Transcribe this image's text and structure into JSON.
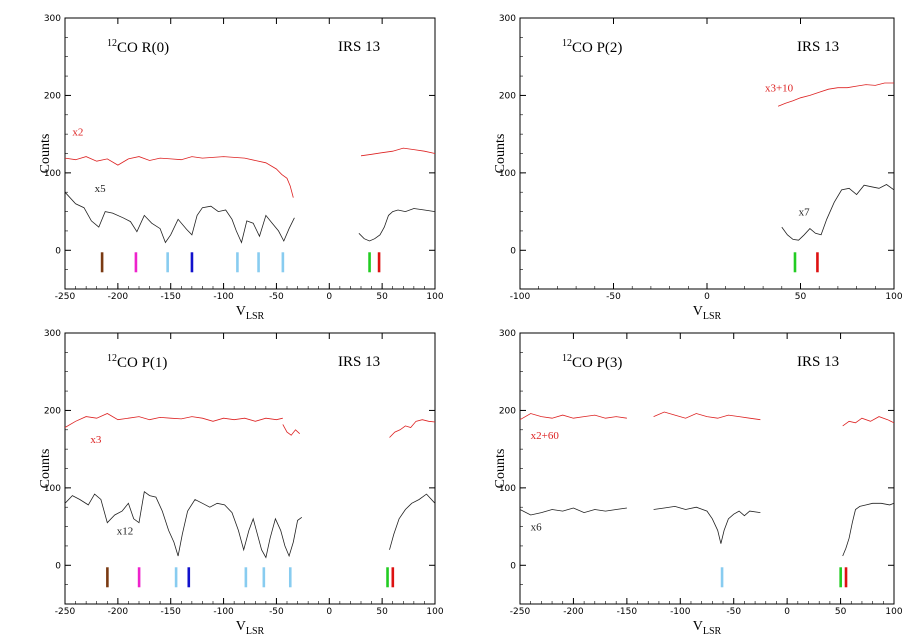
{
  "colors": {
    "red_trace": "#dd2222",
    "black_trace": "#222222",
    "brown": "#7a3a12",
    "magenta": "#ee22cc",
    "light_blue": "#88ccf0",
    "blue": "#1111cc",
    "green": "#22cc22",
    "red": "#dd1111"
  },
  "chart_data": [
    {
      "type": "line",
      "title_iso": "12",
      "title_main": "CO R(0)",
      "source": "IRS 13",
      "xlabel": "V",
      "xlabel_sub": "LSR",
      "ylabel": "Counts",
      "xlim": [
        -250,
        100
      ],
      "ylim": [
        -50,
        300
      ],
      "xticks": [
        -250,
        -200,
        -150,
        -100,
        -50,
        0,
        50,
        100
      ],
      "yticks": [
        0,
        100,
        200,
        300
      ],
      "series": [
        {
          "name": "x2",
          "color_key": "red_trace",
          "segments": [
            {
              "x": [
                -250,
                -240,
                -230,
                -220,
                -210,
                -200,
                -190,
                -180,
                -170,
                -160,
                -150,
                -140,
                -130,
                -120,
                -110,
                -100,
                -90,
                -80,
                -70,
                -60,
                -50,
                -45,
                -40,
                -37,
                -34
              ],
              "y": [
                119,
                117,
                121,
                115,
                118,
                110,
                118,
                121,
                116,
                119,
                118,
                117,
                121,
                119,
                120,
                121,
                120,
                119,
                116,
                113,
                105,
                98,
                93,
                83,
                68
              ]
            },
            {
              "x": [
                30,
                40,
                50,
                60,
                70,
                80,
                90,
                100
              ],
              "y": [
                122,
                124,
                126,
                128,
                132,
                130,
                128,
                125
              ]
            }
          ]
        },
        {
          "name": "x5",
          "color_key": "black_trace",
          "segments": [
            {
              "x": [
                -250,
                -240,
                -232,
                -225,
                -218,
                -212,
                -205,
                -195,
                -188,
                -182,
                -175,
                -168,
                -160,
                -155,
                -150,
                -143,
                -135,
                -130,
                -125,
                -120,
                -112,
                -105,
                -98,
                -92,
                -88,
                -83,
                -78,
                -72,
                -66,
                -60,
                -54,
                -48,
                -43,
                -38,
                -33
              ],
              "y": [
                75,
                60,
                55,
                38,
                30,
                50,
                48,
                42,
                37,
                24,
                45,
                35,
                28,
                10,
                20,
                40,
                27,
                20,
                45,
                55,
                57,
                50,
                52,
                40,
                25,
                10,
                38,
                35,
                18,
                45,
                35,
                25,
                12,
                28,
                42
              ]
            },
            {
              "x": [
                28,
                33,
                38,
                43,
                48,
                52,
                56,
                60,
                65,
                72,
                80,
                90,
                100
              ],
              "y": [
                22,
                15,
                12,
                15,
                20,
                30,
                45,
                50,
                52,
                50,
                54,
                52,
                50
              ]
            }
          ]
        }
      ],
      "markers": [
        {
          "x": -215,
          "color_key": "brown"
        },
        {
          "x": -183,
          "color_key": "magenta"
        },
        {
          "x": -153,
          "color_key": "light_blue"
        },
        {
          "x": -130,
          "color_key": "blue"
        },
        {
          "x": -87,
          "color_key": "light_blue"
        },
        {
          "x": -67,
          "color_key": "light_blue"
        },
        {
          "x": -44,
          "color_key": "light_blue"
        },
        {
          "x": 38,
          "color_key": "green"
        },
        {
          "x": 47,
          "color_key": "red"
        }
      ],
      "annotations": [
        {
          "text": "x2",
          "x": -243,
          "y": 148,
          "color_key": "red_trace"
        },
        {
          "text": "x5",
          "x": -222,
          "y": 75,
          "color_key": "black_trace"
        }
      ]
    },
    {
      "type": "line",
      "title_iso": "12",
      "title_main": "CO P(2)",
      "source": "IRS 13",
      "xlabel": "V",
      "xlabel_sub": "LSR",
      "ylabel": "Counts",
      "xlim": [
        -100,
        100
      ],
      "ylim": [
        -50,
        300
      ],
      "xticks": [
        -100,
        -50,
        0,
        50,
        100
      ],
      "yticks": [
        0,
        100,
        200,
        300
      ],
      "series": [
        {
          "name": "x3+10",
          "color_key": "red_trace",
          "segments": [
            {
              "x": [
                38,
                42,
                46,
                50,
                55,
                60,
                65,
                70,
                75,
                80,
                85,
                90,
                95,
                100
              ],
              "y": [
                186,
                190,
                193,
                197,
                200,
                204,
                208,
                210,
                210,
                212,
                214,
                213,
                216,
                216
              ]
            }
          ]
        },
        {
          "name": "x7",
          "color_key": "black_trace",
          "segments": [
            {
              "x": [
                40,
                43,
                46,
                49,
                52,
                55,
                58,
                61,
                64,
                68,
                72,
                76,
                80,
                84,
                88,
                92,
                96,
                100
              ],
              "y": [
                30,
                20,
                14,
                13,
                20,
                28,
                22,
                20,
                40,
                62,
                78,
                80,
                72,
                84,
                82,
                80,
                85,
                78
              ]
            }
          ]
        }
      ],
      "markers": [
        {
          "x": 47,
          "color_key": "green"
        },
        {
          "x": 59,
          "color_key": "red"
        }
      ],
      "annotations": [
        {
          "text": "x3+10",
          "x": 31,
          "y": 205,
          "color_key": "red_trace"
        },
        {
          "text": "x7",
          "x": 49,
          "y": 45,
          "color_key": "black_trace"
        }
      ]
    },
    {
      "type": "line",
      "title_iso": "12",
      "title_main": "CO P(1)",
      "source": "IRS 13",
      "xlabel": "V",
      "xlabel_sub": "LSR",
      "ylabel": "Counts",
      "xlim": [
        -250,
        100
      ],
      "ylim": [
        -50,
        300
      ],
      "xticks": [
        -250,
        -200,
        -150,
        -100,
        -50,
        0,
        50,
        100
      ],
      "yticks": [
        0,
        100,
        200,
        300
      ],
      "series": [
        {
          "name": "x3",
          "color_key": "red_trace",
          "segments": [
            {
              "x": [
                -250,
                -240,
                -230,
                -220,
                -210,
                -200,
                -190,
                -180,
                -170,
                -160,
                -150,
                -140,
                -130,
                -120,
                -110,
                -100,
                -90,
                -80,
                -70,
                -60,
                -50,
                -44
              ],
              "y": [
                178,
                186,
                192,
                190,
                196,
                188,
                190,
                192,
                188,
                191,
                190,
                189,
                192,
                190,
                186,
                190,
                188,
                190,
                186,
                190,
                188,
                190
              ]
            },
            {
              "x": [
                -44,
                -40,
                -36,
                -32,
                -28
              ],
              "y": [
                182,
                172,
                168,
                175,
                170
              ]
            },
            {
              "x": [
                57,
                62,
                67,
                72,
                77,
                82,
                88,
                94,
                100
              ],
              "y": [
                165,
                172,
                175,
                180,
                178,
                186,
                188,
                186,
                185
              ]
            }
          ]
        },
        {
          "name": "x12",
          "color_key": "black_trace",
          "segments": [
            {
              "x": [
                -250,
                -243,
                -236,
                -228,
                -222,
                -216,
                -210,
                -203,
                -196,
                -190,
                -185,
                -180,
                -175,
                -170,
                -164,
                -158,
                -152,
                -147,
                -143,
                -139,
                -134,
                -127,
                -120,
                -113,
                -106,
                -99,
                -92,
                -86,
                -81,
                -76,
                -72,
                -68,
                -64,
                -60,
                -56,
                -51,
                -46,
                -42,
                -38,
                -34,
                -30,
                -26
              ],
              "y": [
                80,
                90,
                85,
                78,
                92,
                85,
                55,
                65,
                70,
                80,
                60,
                55,
                95,
                90,
                88,
                70,
                45,
                30,
                12,
                40,
                70,
                85,
                80,
                75,
                80,
                78,
                68,
                45,
                20,
                45,
                60,
                40,
                20,
                10,
                35,
                60,
                45,
                25,
                12,
                30,
                58,
                62
              ]
            },
            {
              "x": [
                57,
                61,
                66,
                72,
                78,
                85,
                92,
                100
              ],
              "y": [
                20,
                40,
                60,
                72,
                80,
                85,
                92,
                80
              ]
            }
          ]
        }
      ],
      "markers": [
        {
          "x": -210,
          "color_key": "brown"
        },
        {
          "x": -180,
          "color_key": "magenta"
        },
        {
          "x": -145,
          "color_key": "light_blue"
        },
        {
          "x": -133,
          "color_key": "blue"
        },
        {
          "x": -79,
          "color_key": "light_blue"
        },
        {
          "x": -62,
          "color_key": "light_blue"
        },
        {
          "x": -37,
          "color_key": "light_blue"
        },
        {
          "x": 55,
          "color_key": "green"
        },
        {
          "x": 60,
          "color_key": "red"
        }
      ],
      "annotations": [
        {
          "text": "x3",
          "x": -226,
          "y": 158,
          "color_key": "red_trace"
        },
        {
          "text": "x12",
          "x": -201,
          "y": 40,
          "color_key": "black_trace"
        }
      ]
    },
    {
      "type": "line",
      "title_iso": "12",
      "title_main": "CO P(3)",
      "source": "IRS 13",
      "xlabel": "V",
      "xlabel_sub": "LSR",
      "ylabel": "Counts",
      "xlim": [
        -250,
        100
      ],
      "ylim": [
        -50,
        300
      ],
      "xticks": [
        -250,
        -200,
        -150,
        -100,
        -50,
        0,
        50,
        100
      ],
      "yticks": [
        0,
        100,
        200,
        300
      ],
      "series": [
        {
          "name": "x2+60",
          "color_key": "red_trace",
          "segments": [
            {
              "x": [
                -250,
                -240,
                -230,
                -220,
                -210,
                -200,
                -190,
                -180,
                -170,
                -160,
                -150
              ],
              "y": [
                188,
                196,
                192,
                190,
                194,
                190,
                192,
                194,
                190,
                192,
                190
              ]
            },
            {
              "x": [
                -125,
                -115,
                -105,
                -95,
                -85,
                -75,
                -65,
                -55,
                -45,
                -35,
                -25
              ],
              "y": [
                192,
                198,
                194,
                190,
                196,
                192,
                190,
                194,
                192,
                190,
                188
              ]
            },
            {
              "x": [
                52,
                58,
                64,
                70,
                78,
                86,
                94,
                100
              ],
              "y": [
                180,
                186,
                184,
                190,
                186,
                192,
                188,
                184
              ]
            }
          ]
        },
        {
          "name": "x6",
          "color_key": "black_trace",
          "segments": [
            {
              "x": [
                -250,
                -240,
                -230,
                -220,
                -210,
                -200,
                -190,
                -180,
                -170,
                -160,
                -150
              ],
              "y": [
                72,
                65,
                68,
                72,
                70,
                74,
                68,
                72,
                70,
                72,
                74
              ]
            },
            {
              "x": [
                -125,
                -115,
                -105,
                -95,
                -85,
                -75,
                -70,
                -65,
                -62,
                -59,
                -55,
                -50,
                -45,
                -40,
                -35,
                -25
              ],
              "y": [
                72,
                74,
                76,
                72,
                75,
                70,
                60,
                45,
                28,
                45,
                60,
                66,
                70,
                64,
                70,
                68
              ]
            },
            {
              "x": [
                52,
                55,
                58,
                61,
                64,
                68,
                74,
                80,
                88,
                96,
                100
              ],
              "y": [
                12,
                22,
                35,
                55,
                72,
                76,
                78,
                80,
                80,
                78,
                80
              ]
            }
          ]
        }
      ],
      "markers": [
        {
          "x": -61,
          "color_key": "light_blue"
        },
        {
          "x": 50,
          "color_key": "green"
        },
        {
          "x": 55,
          "color_key": "red"
        }
      ],
      "annotations": [
        {
          "text": "x2+60",
          "x": -240,
          "y": 163,
          "color_key": "red_trace"
        },
        {
          "text": "x6",
          "x": -240,
          "y": 45,
          "color_key": "black_trace"
        }
      ]
    }
  ]
}
